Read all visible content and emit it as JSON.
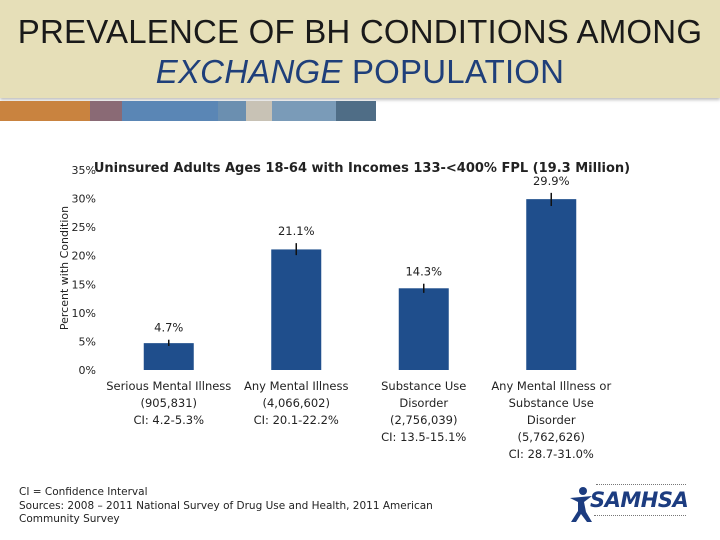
{
  "slide": {
    "title_line1": "PREVALENCE OF BH CONDITIONS AMONG",
    "title_em": "EXCHANGE",
    "title_rest": " POPULATION"
  },
  "colors": {
    "header_bg": "#e6dfb8",
    "bar": "#1f4e8c",
    "strip": [
      "#c9833f",
      "#8a6a75",
      "#5a86b5",
      "#6b8fb0",
      "#c8c2b5",
      "#7a9bb8",
      "#4f6d86",
      "#34506a"
    ]
  },
  "chart_data": {
    "type": "bar",
    "title": "Uninsured Adults Ages 18-64 with Incomes 133-<400% FPL (19.3 Million)",
    "ylabel": "Percent with Condition",
    "ylim": [
      0,
      35
    ],
    "yticks": [
      "0%",
      "5%",
      "10%",
      "15%",
      "20%",
      "25%",
      "30%",
      "35%"
    ],
    "grid": false,
    "categories": [
      [
        "Serious Mental Illness",
        "(905,831)",
        "CI: 4.2-5.3%"
      ],
      [
        "Any Mental Illness",
        "(4,066,602)",
        "CI: 20.1-22.2%"
      ],
      [
        "Substance Use",
        "Disorder",
        "(2,756,039)",
        "CI: 13.5-15.1%"
      ],
      [
        "Any Mental Illness or",
        "Substance Use",
        "Disorder",
        "(5,762,626)",
        "CI: 28.7-31.0%"
      ]
    ],
    "values": [
      4.7,
      21.1,
      14.3,
      29.9
    ],
    "data_labels": [
      "4.7%",
      "21.1%",
      "14.3%",
      "29.9%"
    ],
    "ci": [
      [
        4.2,
        5.3
      ],
      [
        20.1,
        22.2
      ],
      [
        13.5,
        15.1
      ],
      [
        28.7,
        31.0
      ]
    ]
  },
  "footnote": {
    "line1": "CI = Confidence Interval",
    "line2": "Sources: 2008 – 2011 National Survey of Drug Use and Health, 2011 American",
    "line3": "Community Survey"
  },
  "logo": {
    "wordmark": "SAMHSA"
  }
}
